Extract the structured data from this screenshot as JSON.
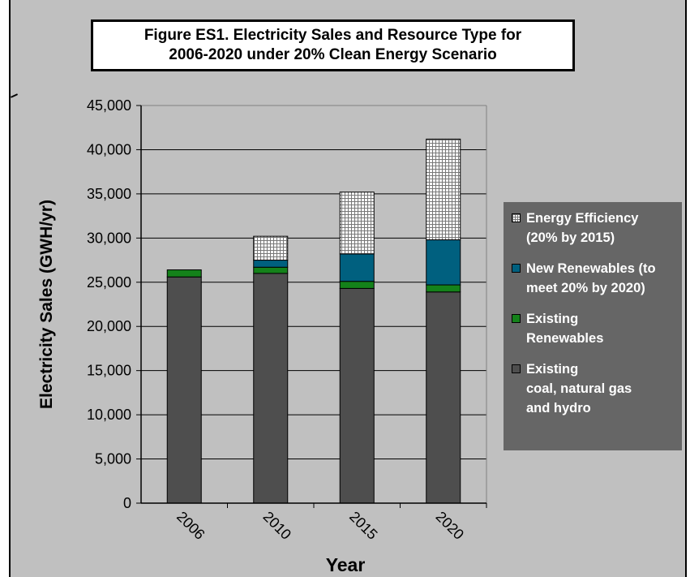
{
  "chart_data": {
    "type": "bar",
    "stacked": true,
    "title": "Figure ES1. Electricity Sales and Resource Type for\n2006-2020 under 20% Clean Energy Scenario",
    "xlabel": "Year",
    "ylabel": "Electricity Sales (GWH/yr)",
    "ylim": [
      0,
      45000
    ],
    "yticks": [
      "0",
      "5,000",
      "10,000",
      "15,000",
      "20,000",
      "25,000",
      "30,000",
      "35,000",
      "40,000",
      "45,000"
    ],
    "categories": [
      "2006",
      "2010",
      "2015",
      "2020"
    ],
    "grid": true,
    "legend_position": "right",
    "series": [
      {
        "name": "Existing\ncoal, natural gas\nand hydro",
        "color": "#4e4e4e",
        "values": [
          25600,
          26000,
          24300,
          23900
        ]
      },
      {
        "name": "Existing\nRenewables",
        "color": "#14821a",
        "values": [
          800,
          700,
          800,
          800
        ]
      },
      {
        "name": "New Renewables (to\nmeet 20% by 2020)",
        "color": "#00607f",
        "values": [
          0,
          800,
          3100,
          5100
        ]
      },
      {
        "name": "Energy Efficiency\n(20% by 2015)",
        "color": "#ffffff",
        "pattern": "grid",
        "values": [
          0,
          2700,
          7000,
          11400
        ]
      }
    ]
  },
  "colors": {
    "background": "#c0c0c0",
    "legend_background": "#666666",
    "gridline": "#000000"
  }
}
